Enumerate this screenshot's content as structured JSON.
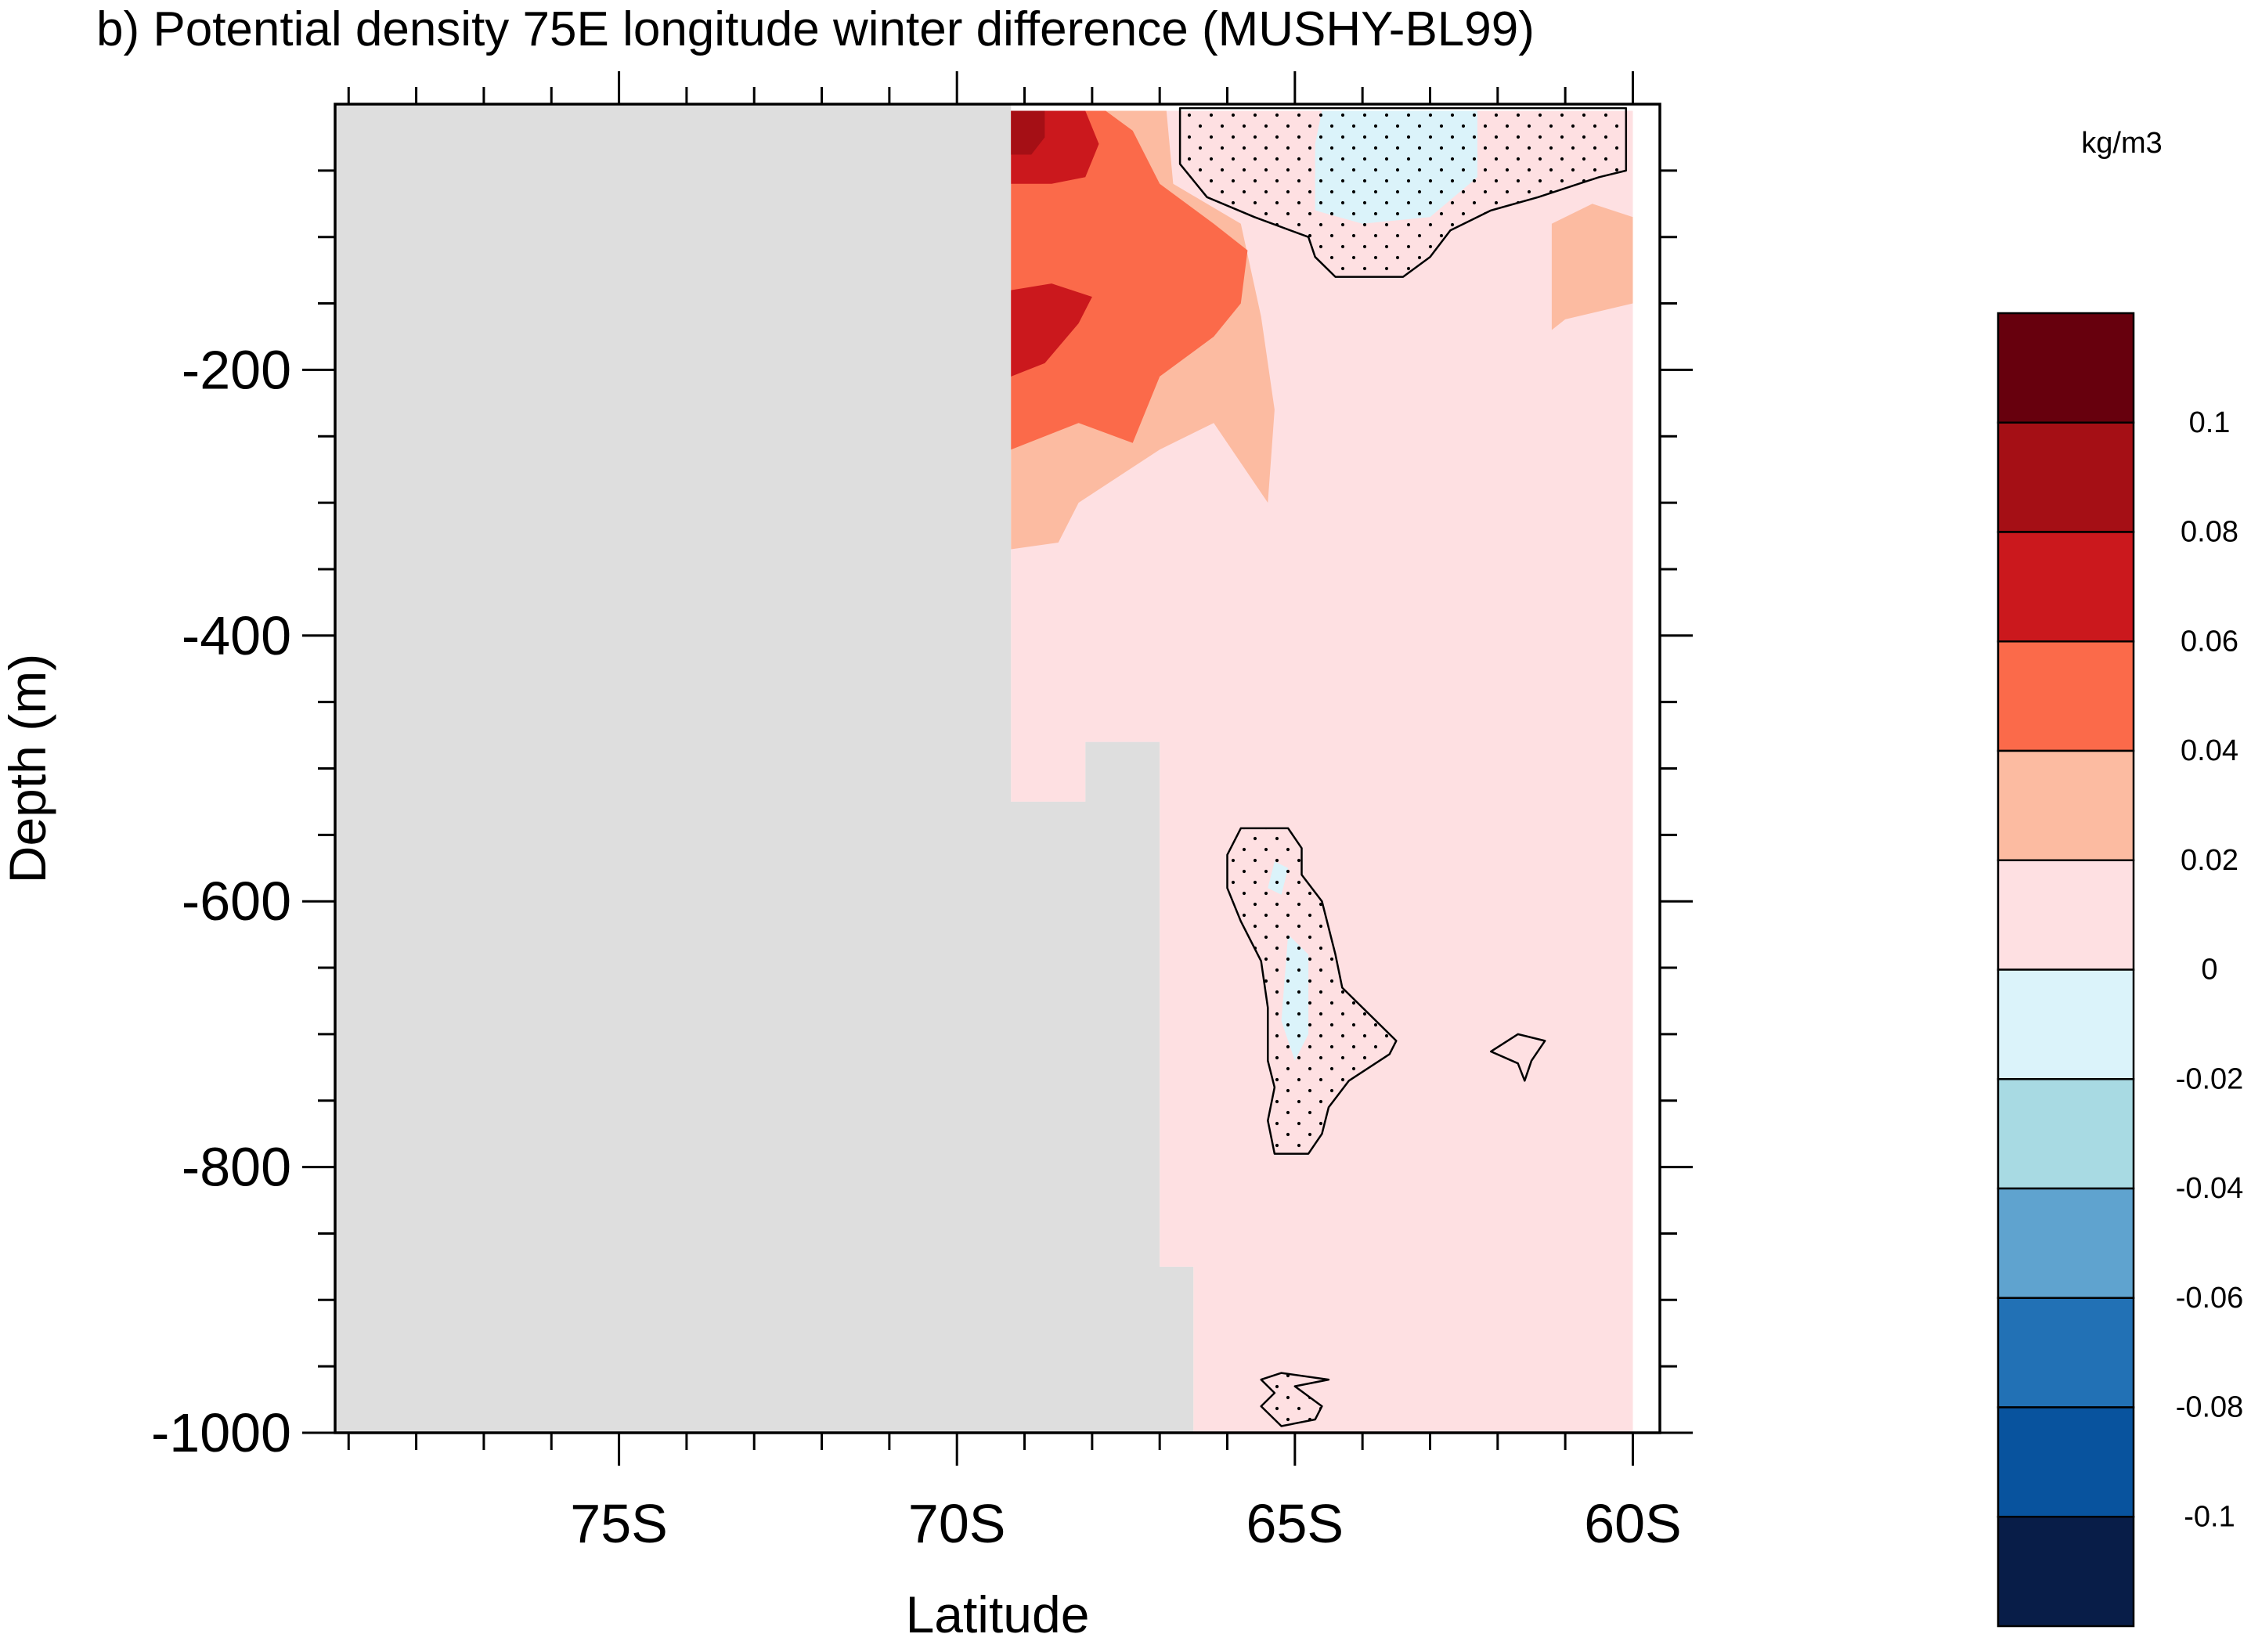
{
  "chart_data": {
    "type": "heatmap",
    "title": "b) Potential density 75E longitude winter difference (MUSHY-BL99)",
    "xlabel": "Latitude",
    "ylabel": "Depth (m)",
    "xlim": [
      -79.2,
      -59.6
    ],
    "ylim": [
      -1000,
      0
    ],
    "x_ticks": [
      {
        "value": -75,
        "label": "75S"
      },
      {
        "value": -70,
        "label": "70S"
      },
      {
        "value": -65,
        "label": "65S"
      },
      {
        "value": -60,
        "label": "60S"
      }
    ],
    "y_ticks": [
      {
        "value": -200,
        "label": "-200"
      },
      {
        "value": -400,
        "label": "-400"
      },
      {
        "value": -600,
        "label": "-600"
      },
      {
        "value": -800,
        "label": "-800"
      },
      {
        "value": -1000,
        "label": "-1000"
      }
    ],
    "colorbar": {
      "units": "kg/m3",
      "levels": [
        {
          "value": 0.1,
          "label": "0.1"
        },
        {
          "value": 0.08,
          "label": "0.08"
        },
        {
          "value": 0.06,
          "label": "0.06"
        },
        {
          "value": 0.04,
          "label": "0.04"
        },
        {
          "value": 0.02,
          "label": "0.02"
        },
        {
          "value": 0,
          "label": "0"
        },
        {
          "value": -0.02,
          "label": "-0.02"
        },
        {
          "value": -0.04,
          "label": "-0.04"
        },
        {
          "value": -0.06,
          "label": "-0.06"
        },
        {
          "value": -0.08,
          "label": "-0.08"
        },
        {
          "value": -0.1,
          "label": "-0.1"
        }
      ],
      "colors": [
        "#67000d",
        "#a50f15",
        "#cb181d",
        "#fb6a4a",
        "#fcbba1",
        "#fee0e2",
        "#dbf3fa",
        "#a8dae3",
        "#5fa3cf",
        "#2271b5",
        "#08539e",
        "#081d48"
      ]
    },
    "land_color": "#dedede",
    "land_mask_polygon": [
      [
        -79.2,
        0
      ],
      [
        -69.2,
        0
      ],
      [
        -69.2,
        -525
      ],
      [
        -68.1,
        -525
      ],
      [
        -68.1,
        -480
      ],
      [
        -67.0,
        -480
      ],
      [
        -67.0,
        -875
      ],
      [
        -66.5,
        -875
      ],
      [
        -66.5,
        -1000
      ],
      [
        -79.2,
        -1000
      ]
    ],
    "regions": [
      {
        "value_range": [
          0,
          0.02
        ],
        "color_index": 5,
        "polygon": [
          [
            -69.2,
            -5
          ],
          [
            -60,
            -5
          ],
          [
            -60,
            -1000
          ],
          [
            -66.5,
            -1000
          ],
          [
            -66.5,
            -875
          ],
          [
            -67.0,
            -875
          ],
          [
            -67.0,
            -480
          ],
          [
            -68.1,
            -480
          ],
          [
            -68.1,
            -525
          ],
          [
            -69.2,
            -525
          ]
        ]
      },
      {
        "value_range": [
          0.02,
          0.04
        ],
        "color_index": 4,
        "polygon": [
          [
            -69.2,
            -5
          ],
          [
            -66.9,
            -5
          ],
          [
            -66.8,
            -60
          ],
          [
            -65.8,
            -90
          ],
          [
            -65.5,
            -160
          ],
          [
            -65.3,
            -230
          ],
          [
            -65.4,
            -300
          ],
          [
            -66.2,
            -240
          ],
          [
            -67.0,
            -260
          ],
          [
            -68.2,
            -300
          ],
          [
            -68.5,
            -330
          ],
          [
            -69.2,
            -335
          ]
        ]
      },
      {
        "value_range": [
          0.02,
          0.04
        ],
        "color_index": 4,
        "polygon": [
          [
            -60,
            -85
          ],
          [
            -60.6,
            -75
          ],
          [
            -61.2,
            -90
          ],
          [
            -61.2,
            -170
          ],
          [
            -61.0,
            -162
          ],
          [
            -60,
            -150
          ]
        ]
      },
      {
        "value_range": [
          0.04,
          0.06
        ],
        "color_index": 3,
        "polygon": [
          [
            -69.2,
            -5
          ],
          [
            -67.8,
            -5
          ],
          [
            -67.4,
            -20
          ],
          [
            -67.0,
            -60
          ],
          [
            -66.2,
            -90
          ],
          [
            -65.7,
            -110
          ],
          [
            -65.8,
            -150
          ],
          [
            -66.2,
            -175
          ],
          [
            -67.0,
            -205
          ],
          [
            -67.4,
            -255
          ],
          [
            -68.2,
            -240
          ],
          [
            -69.2,
            -260
          ]
        ]
      },
      {
        "value_range": [
          0.06,
          0.08
        ],
        "color_index": 2,
        "polygon": [
          [
            -69.2,
            -5
          ],
          [
            -68.1,
            -5
          ],
          [
            -67.9,
            -30
          ],
          [
            -68.1,
            -55
          ],
          [
            -68.6,
            -60
          ],
          [
            -69.2,
            -60
          ]
        ]
      },
      {
        "value_range": [
          0.06,
          0.08
        ],
        "color_index": 2,
        "polygon": [
          [
            -69.2,
            -140
          ],
          [
            -68.6,
            -135
          ],
          [
            -68.0,
            -145
          ],
          [
            -68.2,
            -165
          ],
          [
            -68.7,
            -195
          ],
          [
            -69.2,
            -205
          ]
        ]
      },
      {
        "value_range": [
          0.08,
          0.1
        ],
        "color_index": 1,
        "polygon": [
          [
            -69.2,
            -5
          ],
          [
            -68.7,
            -5
          ],
          [
            -68.7,
            -25
          ],
          [
            -68.9,
            -38
          ],
          [
            -69.2,
            -38
          ]
        ]
      },
      {
        "value_range": [
          -0.02,
          0
        ],
        "color_index": 6,
        "polygon": [
          [
            -64.6,
            -5
          ],
          [
            -62.3,
            -5
          ],
          [
            -62.3,
            -55
          ],
          [
            -63.0,
            -85
          ],
          [
            -64.0,
            -90
          ],
          [
            -64.7,
            -80
          ],
          [
            -64.7,
            -30
          ]
        ]
      },
      {
        "value_range": [
          -0.02,
          0
        ],
        "color_index": 6,
        "polygon": [
          [
            -65.3,
            -570
          ],
          [
            -65.1,
            -575
          ],
          [
            -65.2,
            -595
          ],
          [
            -65.4,
            -590
          ]
        ]
      },
      {
        "value_range": [
          -0.02,
          0
        ],
        "color_index": 6,
        "polygon": [
          [
            -65.1,
            -625
          ],
          [
            -64.8,
            -640
          ],
          [
            -64.8,
            -700
          ],
          [
            -65.0,
            -720
          ],
          [
            -65.2,
            -690
          ]
        ]
      }
    ],
    "significance_contours": [
      {
        "stippled": true,
        "polygon": [
          [
            -66.7,
            -3
          ],
          [
            -60.1,
            -3
          ],
          [
            -60.1,
            -50
          ],
          [
            -60.5,
            -55
          ],
          [
            -61.4,
            -70
          ],
          [
            -62.1,
            -80
          ],
          [
            -62.7,
            -95
          ],
          [
            -63.0,
            -115
          ],
          [
            -63.4,
            -130
          ],
          [
            -64.4,
            -130
          ],
          [
            -64.7,
            -115
          ],
          [
            -64.8,
            -100
          ],
          [
            -65.6,
            -85
          ],
          [
            -66.3,
            -70
          ],
          [
            -66.7,
            -45
          ]
        ]
      },
      {
        "stippled": true,
        "polygon": [
          [
            -65.8,
            -545
          ],
          [
            -65.1,
            -545
          ],
          [
            -64.9,
            -560
          ],
          [
            -64.9,
            -580
          ],
          [
            -64.6,
            -600
          ],
          [
            -64.4,
            -640
          ],
          [
            -64.3,
            -665
          ],
          [
            -63.8,
            -690
          ],
          [
            -63.5,
            -705
          ],
          [
            -63.6,
            -715
          ],
          [
            -64.2,
            -735
          ],
          [
            -64.5,
            -755
          ],
          [
            -64.6,
            -775
          ],
          [
            -64.8,
            -790
          ],
          [
            -65.3,
            -790
          ],
          [
            -65.4,
            -765
          ],
          [
            -65.3,
            -740
          ],
          [
            -65.4,
            -720
          ],
          [
            -65.4,
            -680
          ],
          [
            -65.5,
            -645
          ],
          [
            -65.8,
            -615
          ],
          [
            -66.0,
            -590
          ],
          [
            -66.0,
            -565
          ]
        ]
      },
      {
        "stippled": false,
        "polygon": [
          [
            -61.7,
            -700
          ],
          [
            -61.3,
            -705
          ],
          [
            -61.5,
            -720
          ],
          [
            -61.6,
            -735
          ],
          [
            -61.7,
            -722
          ],
          [
            -62.1,
            -713
          ]
        ]
      },
      {
        "stippled": true,
        "polygon": [
          [
            -65.2,
            -955
          ],
          [
            -64.5,
            -960
          ],
          [
            -65.0,
            -965
          ],
          [
            -64.6,
            -980
          ],
          [
            -64.7,
            -990
          ],
          [
            -65.2,
            -995
          ],
          [
            -65.5,
            -980
          ],
          [
            -65.3,
            -970
          ],
          [
            -65.5,
            -960
          ]
        ]
      }
    ]
  }
}
